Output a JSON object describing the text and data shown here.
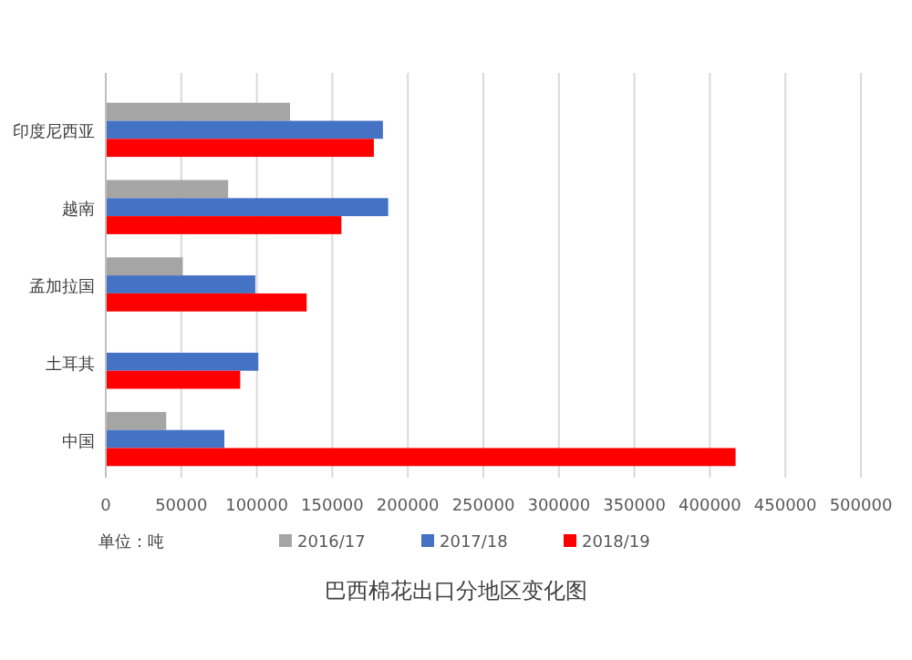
{
  "chart_data": {
    "type": "bar",
    "orientation": "horizontal",
    "title": "巴西棉花出口分地区变化图",
    "categories": [
      "印度尼西亚",
      "越南",
      "孟加拉国",
      "土耳其",
      "中国"
    ],
    "series": [
      {
        "name": "2016/17",
        "color": "#a5a5a5",
        "values": [
          122000,
          81000,
          51000,
          null,
          40000
        ]
      },
      {
        "name": "2017/18",
        "color": "#4472c4",
        "values": [
          183500,
          187000,
          99000,
          101000,
          78500
        ]
      },
      {
        "name": "2018/19",
        "color": "#ff0000",
        "values": [
          177500,
          156000,
          133000,
          89000,
          417000
        ]
      }
    ],
    "xlim": [
      0,
      500000
    ],
    "xticks": [
      0,
      50000,
      100000,
      150000,
      200000,
      250000,
      300000,
      350000,
      400000,
      450000,
      500000
    ],
    "grid": "x",
    "legend": "bottom",
    "annotations": [
      "单位：吨"
    ]
  }
}
